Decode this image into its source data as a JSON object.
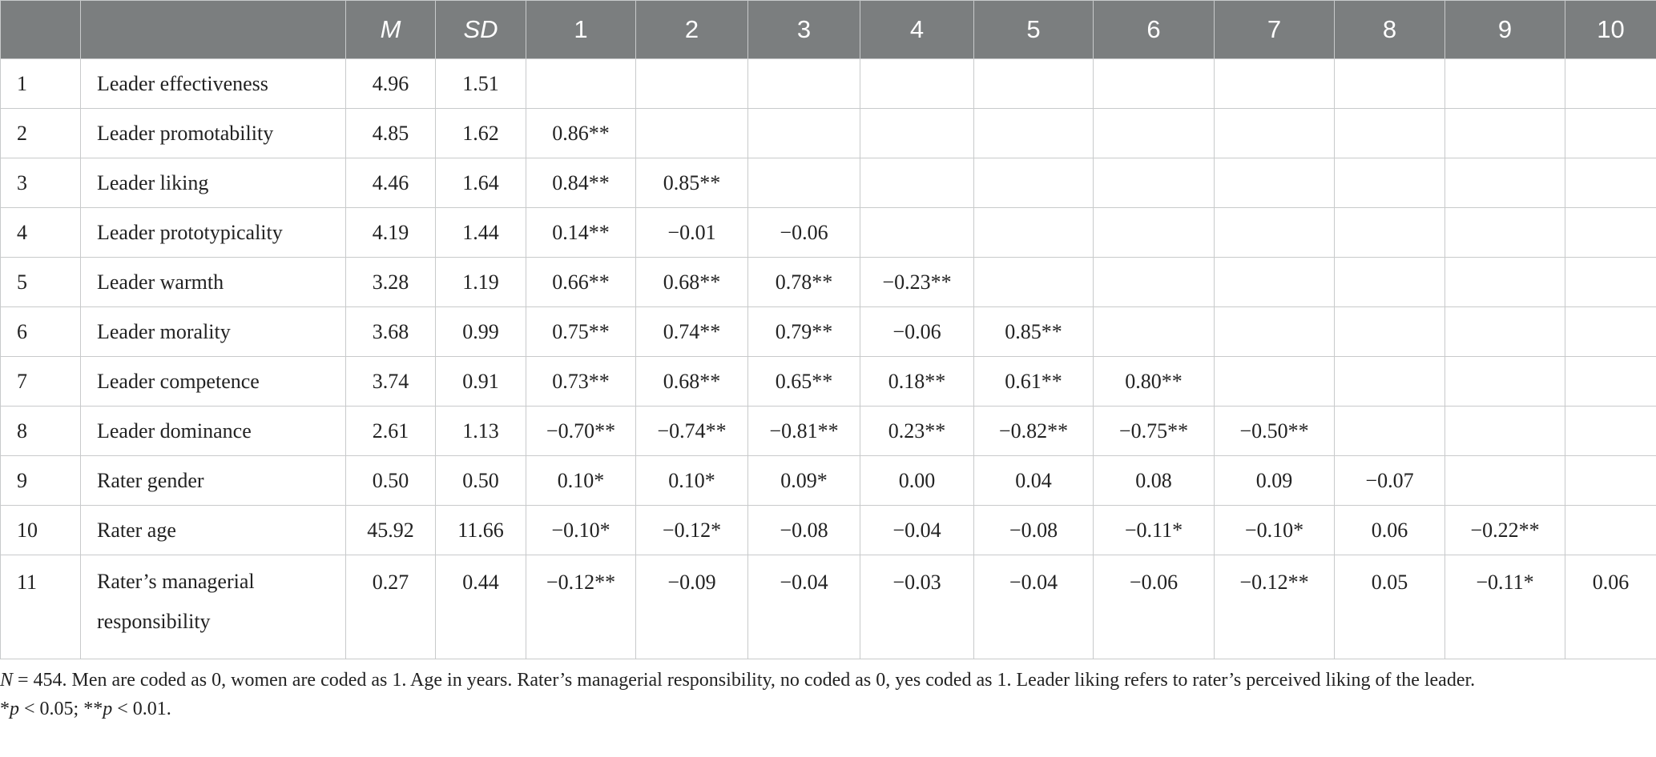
{
  "table": {
    "headers": [
      "",
      "",
      "M",
      "SD",
      "1",
      "2",
      "3",
      "4",
      "5",
      "6",
      "7",
      "8",
      "9",
      "10"
    ],
    "rows": [
      {
        "idx": "1",
        "name": "Leader effectiveness",
        "M": "4.96",
        "SD": "1.51",
        "cells": [
          "",
          "",
          "",
          "",
          "",
          "",
          "",
          "",
          "",
          ""
        ]
      },
      {
        "idx": "2",
        "name": "Leader promotability",
        "M": "4.85",
        "SD": "1.62",
        "cells": [
          "0.86**",
          "",
          "",
          "",
          "",
          "",
          "",
          "",
          "",
          ""
        ]
      },
      {
        "idx": "3",
        "name": "Leader liking",
        "M": "4.46",
        "SD": "1.64",
        "cells": [
          "0.84**",
          "0.85**",
          "",
          "",
          "",
          "",
          "",
          "",
          "",
          ""
        ]
      },
      {
        "idx": "4",
        "name": "Leader prototypicality",
        "M": "4.19",
        "SD": "1.44",
        "cells": [
          "0.14**",
          "−0.01",
          "−0.06",
          "",
          "",
          "",
          "",
          "",
          "",
          ""
        ]
      },
      {
        "idx": "5",
        "name": "Leader warmth",
        "M": "3.28",
        "SD": "1.19",
        "cells": [
          "0.66**",
          "0.68**",
          "0.78**",
          "−0.23**",
          "",
          "",
          "",
          "",
          "",
          ""
        ]
      },
      {
        "idx": "6",
        "name": "Leader morality",
        "M": "3.68",
        "SD": "0.99",
        "cells": [
          "0.75**",
          "0.74**",
          "0.79**",
          "−0.06",
          "0.85**",
          "",
          "",
          "",
          "",
          ""
        ]
      },
      {
        "idx": "7",
        "name": "Leader competence",
        "M": "3.74",
        "SD": "0.91",
        "cells": [
          "0.73**",
          "0.68**",
          "0.65**",
          "0.18**",
          "0.61**",
          "0.80**",
          "",
          "",
          "",
          ""
        ]
      },
      {
        "idx": "8",
        "name": "Leader dominance",
        "M": "2.61",
        "SD": "1.13",
        "cells": [
          "−0.70**",
          "−0.74**",
          "−0.81**",
          "0.23**",
          "−0.82**",
          "−0.75**",
          "−0.50**",
          "",
          "",
          ""
        ]
      },
      {
        "idx": "9",
        "name": "Rater gender",
        "M": "0.50",
        "SD": "0.50",
        "cells": [
          "0.10*",
          "0.10*",
          "0.09*",
          "0.00",
          "0.04",
          "0.08",
          "0.09",
          "−0.07",
          "",
          ""
        ]
      },
      {
        "idx": "10",
        "name": "Rater age",
        "M": "45.92",
        "SD": "11.66",
        "cells": [
          "−0.10*",
          "−0.12*",
          "−0.08",
          "−0.04",
          "−0.08",
          "−0.11*",
          "−0.10*",
          "0.06",
          "−0.22**",
          ""
        ]
      },
      {
        "idx": "11",
        "name": "Rater’s managerial responsibility",
        "M": "0.27",
        "SD": "0.44",
        "cells": [
          "−0.12**",
          "−0.09",
          "−0.04",
          "−0.03",
          "−0.04",
          "−0.06",
          "−0.12**",
          "0.05",
          "−0.11*",
          "0.06"
        ]
      }
    ]
  },
  "note": {
    "n_label": "N",
    "line1_rest": " = 454. Men are coded as 0, women are coded as 1. Age in years. Rater’s managerial responsibility, no coded as 0, yes coded as 1. Leader liking refers to rater’s perceived liking of the leader.",
    "star1": "*",
    "p1": "p",
    "sig1": " < 0.05; ",
    "star2": "**",
    "p2": "p",
    "sig2": " < 0.01."
  }
}
